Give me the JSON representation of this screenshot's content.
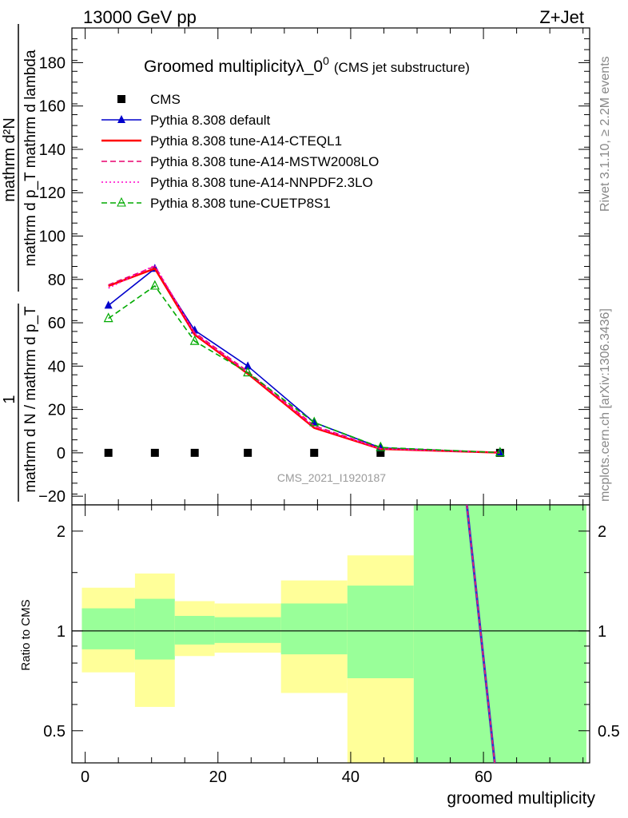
{
  "header": {
    "left": "13000 GeV pp",
    "right": "Z+Jet"
  },
  "side_labels": {
    "rivet": "Rivet 3.1.10, ≥ 2.2M events",
    "mcplots": "mcplots.cern.ch [arXiv:1306.3436]"
  },
  "chart_data": [
    {
      "type": "line",
      "title": "Groomed multiplicityλ_0",
      "title_superscript": "0",
      "subtitle": "(CMS jet substructure)",
      "watermark": "CMS_2021_I1920187",
      "ylabel_numerator": "mathrm d²N",
      "ylabel_denominator": "mathrm d p_T mathrm d lambda",
      "ylabel_prefactor_num": "1",
      "ylabel_prefactor_den": "mathrm d N / mathrm d p_T",
      "xlim": [
        -2,
        76
      ],
      "ylim": [
        -24,
        196
      ],
      "yticks": [
        -20,
        0,
        20,
        40,
        60,
        80,
        100,
        120,
        140,
        160,
        180
      ],
      "legend_position": "top-left",
      "series": [
        {
          "name": "CMS",
          "color": "#000000",
          "marker": "square",
          "x": [
            3.5,
            10.5,
            16.5,
            24.5,
            34.5,
            44.5,
            62.5
          ],
          "y": [
            0,
            0,
            0,
            0,
            0,
            0,
            0
          ]
        },
        {
          "name": "Pythia 8.308 default",
          "color": "#0000cc",
          "marker": "triangle-filled",
          "line": "solid",
          "x": [
            3.5,
            10.5,
            16.5,
            24.5,
            34.5,
            44.5,
            62.5
          ],
          "y": [
            68,
            85,
            56.5,
            40,
            14,
            2.3,
            0.1
          ]
        },
        {
          "name": "Pythia 8.308 tune-A14-CTEQL1",
          "color": "#ff0000",
          "line": "solid",
          "x": [
            3.5,
            10.5,
            16.5,
            24.5,
            34.5,
            44.5,
            62.5
          ],
          "y": [
            77,
            85,
            54.5,
            36.5,
            11.5,
            1.8,
            0.1
          ]
        },
        {
          "name": "Pythia 8.308 tune-A14-MSTW2008LO",
          "color": "#e8006e",
          "line": "dashed",
          "x": [
            3.5,
            10.5,
            16.5,
            24.5,
            34.5,
            44.5,
            62.5
          ],
          "y": [
            77.5,
            86,
            55.5,
            37.5,
            12.5,
            2.0,
            0.1
          ]
        },
        {
          "name": "Pythia 8.308 tune-A14-NNPDF2.3LO",
          "color": "#ff00cc",
          "line": "dotted",
          "x": [
            3.5,
            10.5,
            16.5,
            24.5,
            34.5,
            44.5,
            62.5
          ],
          "y": [
            76,
            86.5,
            55,
            37,
            12,
            1.9,
            0.1
          ]
        },
        {
          "name": "Pythia 8.308 tune-CUETP8S1",
          "color": "#00aa00",
          "marker": "triangle-open",
          "line": "dashed",
          "x": [
            3.5,
            10.5,
            16.5,
            24.5,
            34.5,
            44.5,
            62.5
          ],
          "y": [
            62,
            77,
            51.5,
            37,
            14,
            2.5,
            0.1
          ]
        }
      ]
    },
    {
      "type": "area",
      "ylabel": "Ratio to CMS",
      "xlabel": "groomed multiplicity",
      "xlim": [
        -2,
        76
      ],
      "ylim": [
        0.4,
        2.4
      ],
      "y_scale": "log",
      "xticks": [
        0,
        20,
        40,
        60
      ],
      "yticks": [
        0.5,
        1,
        2
      ],
      "reference_line": 1,
      "bands": [
        {
          "x_from": -0.5,
          "x_to": 7.5,
          "yellow": [
            0.75,
            1.35
          ],
          "green": [
            0.88,
            1.17
          ]
        },
        {
          "x_from": 7.5,
          "x_to": 13.5,
          "yellow": [
            0.59,
            1.49
          ],
          "green": [
            0.82,
            1.25
          ]
        },
        {
          "x_from": 13.5,
          "x_to": 19.5,
          "yellow": [
            0.84,
            1.23
          ],
          "green": [
            0.91,
            1.11
          ]
        },
        {
          "x_from": 19.5,
          "x_to": 29.5,
          "yellow": [
            0.86,
            1.21
          ],
          "green": [
            0.92,
            1.1
          ]
        },
        {
          "x_from": 29.5,
          "x_to": 39.5,
          "yellow": [
            0.65,
            1.42
          ],
          "green": [
            0.85,
            1.21
          ]
        },
        {
          "x_from": 39.5,
          "x_to": 49.5,
          "yellow": [
            0.36,
            1.69
          ],
          "green": [
            0.72,
            1.37
          ]
        },
        {
          "x_from": 49.5,
          "x_to": 75.5,
          "yellow": [
            0.36,
            2.4
          ],
          "green": [
            0.36,
            2.4
          ]
        }
      ],
      "ratio_curve": {
        "from": {
          "x": 57.5,
          "y": 2.4
        },
        "to": {
          "x": 61.7,
          "y": 0.4
        }
      }
    }
  ]
}
